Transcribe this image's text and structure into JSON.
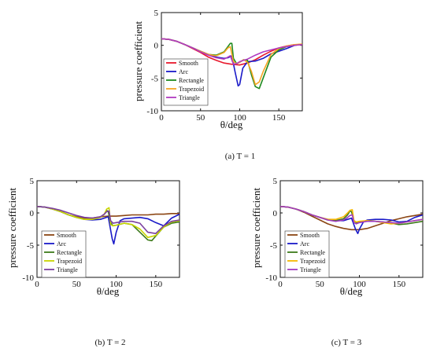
{
  "chart_data": [
    {
      "type": "line",
      "xlabel": "θ/deg",
      "ylabel": "pressure coefficient",
      "xlim": [
        0,
        180
      ],
      "ylim": [
        -10,
        5
      ],
      "xticks": [
        "0",
        "50",
        "100",
        "150"
      ],
      "yticks": [
        "5",
        "0",
        "-5",
        "-10"
      ],
      "legend": "bottom-left",
      "caption": "(a)   T = 1",
      "series": [
        {
          "name": "Smooth",
          "color": "#e8182c",
          "x": [
            0,
            10,
            20,
            30,
            40,
            50,
            60,
            70,
            80,
            90,
            100,
            110,
            120,
            130,
            140,
            150,
            160,
            170,
            180
          ],
          "y": [
            1,
            0.9,
            0.6,
            0.1,
            -0.5,
            -1.1,
            -1.8,
            -2.3,
            -2.7,
            -2.9,
            -3.0,
            -2.7,
            -2.2,
            -1.5,
            -0.9,
            -0.4,
            -0.1,
            0.1,
            0.1
          ]
        },
        {
          "name": "Arc",
          "color": "#1a1ac8",
          "x": [
            0,
            10,
            20,
            30,
            40,
            50,
            60,
            70,
            80,
            85,
            90,
            94,
            98,
            100,
            104,
            110,
            120,
            130,
            140,
            150,
            160,
            170,
            180
          ],
          "y": [
            1,
            0.9,
            0.6,
            0.1,
            -0.4,
            -0.9,
            -1.4,
            -1.8,
            -2.0,
            -1.9,
            -1.6,
            -4.0,
            -6.2,
            -6.0,
            -3.5,
            -2.5,
            -2.4,
            -2.0,
            -1.3,
            -0.9,
            -0.5,
            0,
            0.2
          ]
        },
        {
          "name": "Rectangle",
          "color": "#1f8a1f",
          "x": [
            0,
            10,
            20,
            30,
            40,
            50,
            60,
            70,
            80,
            85,
            88,
            90,
            92,
            96,
            100,
            105,
            110,
            115,
            120,
            125,
            130,
            140,
            150,
            160,
            170,
            180
          ],
          "y": [
            1,
            0.9,
            0.6,
            0.1,
            -0.4,
            -0.9,
            -1.4,
            -1.5,
            -1.0,
            -0.2,
            0.3,
            0.3,
            -2.0,
            -2.8,
            -2.6,
            -2.2,
            -2.3,
            -4.5,
            -6.3,
            -6.6,
            -5.0,
            -1.8,
            -0.7,
            -0.2,
            0,
            0.2
          ]
        },
        {
          "name": "Trapezoid",
          "color": "#f5a623",
          "x": [
            0,
            10,
            20,
            30,
            40,
            50,
            60,
            70,
            80,
            85,
            88,
            92,
            96,
            100,
            105,
            110,
            115,
            120,
            125,
            130,
            140,
            150,
            160,
            170,
            180
          ],
          "y": [
            1,
            0.9,
            0.6,
            0.1,
            -0.4,
            -0.9,
            -1.4,
            -1.6,
            -1.1,
            -0.4,
            -0.2,
            -2.5,
            -2.8,
            -2.6,
            -2.2,
            -2.6,
            -4.0,
            -6.0,
            -5.6,
            -4.0,
            -1.4,
            -0.5,
            -0.1,
            0.1,
            0.2
          ]
        },
        {
          "name": "Triangle",
          "color": "#b03ac0",
          "x": [
            0,
            10,
            20,
            30,
            40,
            50,
            60,
            70,
            80,
            85,
            88,
            92,
            96,
            100,
            105,
            110,
            120,
            130,
            140,
            150,
            160,
            170,
            180
          ],
          "y": [
            1,
            0.9,
            0.6,
            0.1,
            -0.4,
            -1.0,
            -1.5,
            -1.9,
            -2.1,
            -1.8,
            -1.6,
            -2.9,
            -2.8,
            -2.5,
            -2.3,
            -2.1,
            -1.5,
            -1.0,
            -0.7,
            -0.4,
            -0.2,
            0,
            0.1
          ]
        }
      ]
    },
    {
      "type": "line",
      "xlabel": "θ/deg",
      "ylabel": "pressure coefficient",
      "xlim": [
        0,
        180
      ],
      "ylim": [
        -10,
        5
      ],
      "xticks": [
        "0",
        "50",
        "100",
        "150"
      ],
      "yticks": [
        "5",
        "0",
        "-5",
        "-10"
      ],
      "legend": "bottom-left",
      "caption": "(b)   T = 2",
      "series": [
        {
          "name": "Smooth",
          "color": "#8b4513",
          "x": [
            0,
            10,
            20,
            30,
            40,
            50,
            60,
            70,
            80,
            90,
            100,
            110,
            120,
            130,
            140,
            150,
            160,
            170,
            180
          ],
          "y": [
            1,
            0.9,
            0.6,
            0.2,
            -0.3,
            -0.6,
            -0.8,
            -0.8,
            -0.6,
            -0.5,
            -0.5,
            -0.4,
            -0.3,
            -0.3,
            -0.3,
            -0.2,
            -0.2,
            -0.1,
            -0.1
          ]
        },
        {
          "name": "Arc",
          "color": "#1a1ac8",
          "x": [
            0,
            10,
            20,
            30,
            40,
            50,
            60,
            70,
            80,
            85,
            90,
            95,
            97,
            100,
            105,
            110,
            120,
            130,
            140,
            150,
            160,
            170,
            180
          ],
          "y": [
            1,
            0.9,
            0.6,
            0.2,
            -0.3,
            -0.7,
            -1.0,
            -1.1,
            -1.0,
            -0.8,
            -0.6,
            -4.0,
            -4.8,
            -3.0,
            -1.2,
            -0.9,
            -0.8,
            -0.7,
            -0.9,
            -1.5,
            -2.0,
            -0.8,
            -0.2
          ]
        },
        {
          "name": "Rectangle",
          "color": "#3d7a1a",
          "x": [
            0,
            10,
            20,
            30,
            40,
            50,
            60,
            70,
            80,
            85,
            88,
            90,
            93,
            96,
            100,
            110,
            120,
            130,
            140,
            145,
            150,
            160,
            170,
            180
          ],
          "y": [
            1,
            0.9,
            0.6,
            0.2,
            -0.3,
            -0.7,
            -1.0,
            -1.0,
            -0.7,
            -0.2,
            0.4,
            0.2,
            -1.5,
            -2.0,
            -1.9,
            -1.6,
            -1.8,
            -3.0,
            -4.2,
            -4.3,
            -3.6,
            -2.2,
            -1.6,
            -1.4
          ]
        },
        {
          "name": "Trapezoid",
          "color": "#c8d400",
          "x": [
            0,
            10,
            20,
            30,
            40,
            50,
            60,
            70,
            80,
            85,
            88,
            91,
            93,
            96,
            100,
            110,
            120,
            130,
            140,
            150,
            160,
            170,
            180
          ],
          "y": [
            1,
            0.9,
            0.6,
            0.2,
            -0.3,
            -0.7,
            -1.0,
            -1.0,
            -0.7,
            -0.2,
            0.6,
            0.8,
            -1.8,
            -2.0,
            -1.9,
            -1.6,
            -1.8,
            -2.5,
            -3.8,
            -3.5,
            -2.2,
            -1.4,
            -1.2
          ]
        },
        {
          "name": "Triangle",
          "color": "#7b3fa0",
          "x": [
            0,
            10,
            20,
            30,
            40,
            50,
            60,
            70,
            80,
            85,
            88,
            91,
            93,
            96,
            100,
            110,
            120,
            130,
            140,
            150,
            160,
            170,
            180
          ],
          "y": [
            1,
            0.9,
            0.7,
            0.4,
            0,
            -0.4,
            -0.7,
            -0.8,
            -0.6,
            -0.2,
            0.2,
            0.3,
            -1.2,
            -1.6,
            -1.5,
            -1.3,
            -1.3,
            -1.6,
            -3.0,
            -3.2,
            -2.0,
            -1.3,
            -1.1
          ]
        }
      ]
    },
    {
      "type": "line",
      "xlabel": "θ/deg",
      "ylabel": "pressure coefficient",
      "xlim": [
        0,
        180
      ],
      "ylim": [
        -10,
        5
      ],
      "xticks": [
        "0",
        "50",
        "100",
        "150"
      ],
      "yticks": [
        "5",
        "0",
        "-5",
        "-10"
      ],
      "legend": "bottom-left",
      "caption": "(c)   T = 3",
      "series": [
        {
          "name": "Smooth",
          "color": "#8b4513",
          "x": [
            0,
            10,
            20,
            30,
            40,
            50,
            60,
            70,
            80,
            90,
            100,
            110,
            120,
            130,
            140,
            150,
            160,
            170,
            180
          ],
          "y": [
            1,
            0.9,
            0.6,
            0.1,
            -0.5,
            -1.1,
            -1.7,
            -2.1,
            -2.4,
            -2.6,
            -2.6,
            -2.4,
            -2.0,
            -1.6,
            -1.2,
            -0.9,
            -0.6,
            -0.4,
            -0.2
          ]
        },
        {
          "name": "Arc",
          "color": "#1a1ac8",
          "x": [
            0,
            10,
            20,
            30,
            40,
            50,
            60,
            70,
            80,
            85,
            90,
            95,
            98,
            100,
            105,
            110,
            120,
            130,
            140,
            150,
            160,
            170,
            180
          ],
          "y": [
            1,
            0.9,
            0.6,
            0.2,
            -0.3,
            -0.7,
            -1.0,
            -1.2,
            -1.2,
            -1.0,
            -0.8,
            -2.5,
            -3.2,
            -2.5,
            -1.4,
            -1.1,
            -1.0,
            -1.0,
            -1.1,
            -1.4,
            -1.3,
            -0.7,
            -0.3
          ]
        },
        {
          "name": "Rectangle",
          "color": "#3d7a1a",
          "x": [
            0,
            10,
            20,
            30,
            40,
            50,
            60,
            70,
            80,
            85,
            88,
            90,
            93,
            96,
            100,
            110,
            120,
            130,
            140,
            150,
            160,
            170,
            180
          ],
          "y": [
            1,
            0.9,
            0.6,
            0.2,
            -0.3,
            -0.7,
            -1.1,
            -1.2,
            -0.9,
            -0.3,
            0.3,
            0.2,
            -1.2,
            -1.5,
            -1.4,
            -1.2,
            -1.3,
            -1.4,
            -1.6,
            -1.8,
            -1.7,
            -1.5,
            -1.3
          ]
        },
        {
          "name": "Trapezoid",
          "color": "#f5b800",
          "x": [
            0,
            10,
            20,
            30,
            40,
            50,
            60,
            70,
            80,
            85,
            88,
            91,
            93,
            96,
            100,
            110,
            120,
            130,
            140,
            150,
            160,
            170,
            180
          ],
          "y": [
            1,
            0.9,
            0.6,
            0.2,
            -0.3,
            -0.7,
            -1.0,
            -1.0,
            -0.6,
            0,
            0.4,
            0.5,
            -1.2,
            -1.4,
            -1.3,
            -1.2,
            -1.3,
            -1.5,
            -1.7,
            -1.6,
            -1.4,
            -1.2,
            -1.0
          ]
        },
        {
          "name": "Triangle",
          "color": "#a03ac0",
          "x": [
            0,
            10,
            20,
            30,
            40,
            50,
            60,
            70,
            80,
            85,
            88,
            91,
            93,
            96,
            100,
            110,
            120,
            130,
            140,
            150,
            160,
            170,
            180
          ],
          "y": [
            1,
            0.9,
            0.6,
            0.2,
            -0.3,
            -0.7,
            -1.1,
            -1.3,
            -1.1,
            -0.7,
            -0.4,
            -0.3,
            -1.5,
            -1.7,
            -1.5,
            -1.3,
            -1.3,
            -1.4,
            -1.5,
            -1.6,
            -1.4,
            -1.2,
            -1.0
          ]
        }
      ]
    }
  ]
}
